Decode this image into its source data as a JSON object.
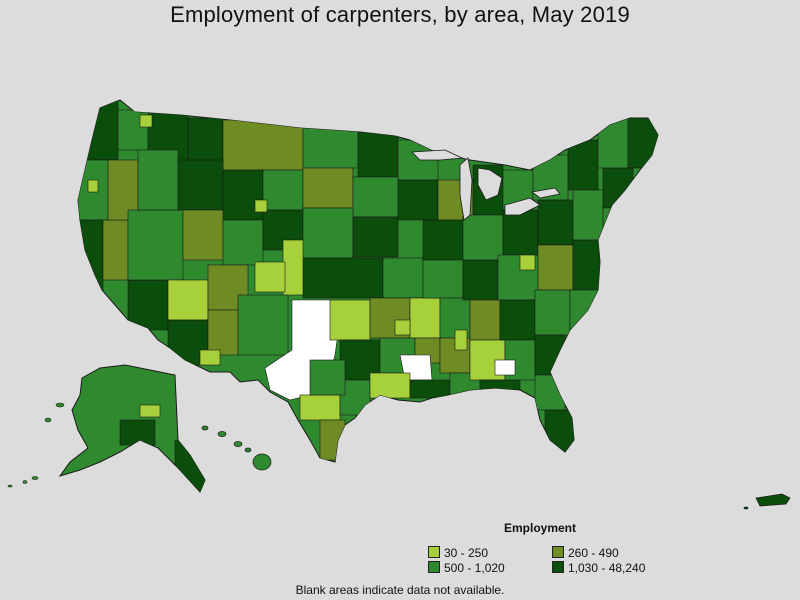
{
  "title": "Employment of carpenters, by area, May 2019",
  "legend": {
    "title": "Employment",
    "items": [
      {
        "label": "30 - 250",
        "color": "#a6d13a"
      },
      {
        "label": "260 - 490",
        "color": "#6e8c23"
      },
      {
        "label": "500 - 1,020",
        "color": "#2f8a2f"
      },
      {
        "label": "1,030 - 48,240",
        "color": "#0b4d0b"
      }
    ]
  },
  "no_data_color": "#ffffff",
  "footnote": "Blank areas indicate data not available."
}
